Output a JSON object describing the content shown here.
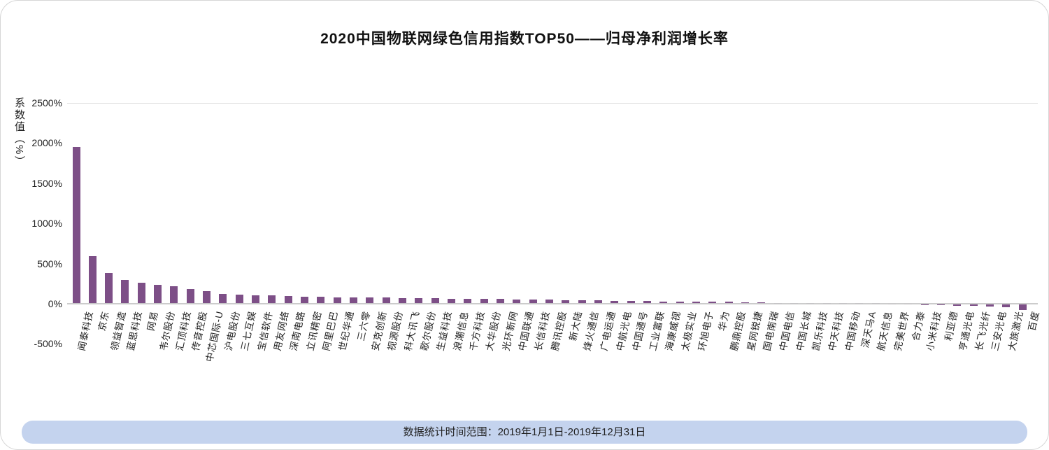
{
  "title": "2020中国物联网绿色信用指数TOP50——归母净利润增长率",
  "y_axis": {
    "title": "系数值（%）"
  },
  "footer": {
    "text": "数据统计时间范围：2019年1月1日-2019年12月31日"
  },
  "colors": {
    "bar": "#7d4f87",
    "footer_bg": "#c4d3ee",
    "axis_line": "#c9c9c9",
    "gridline": "#dcdcdc"
  },
  "chart_data": {
    "type": "bar",
    "title": "2020中国物联网绿色信用指数TOP50——归母净利润增长率",
    "xlabel": "",
    "ylabel": "系数值（%）",
    "ylim": [
      -500,
      2500
    ],
    "yticks": [
      "2500%",
      "2000%",
      "1500%",
      "1000%",
      "500%",
      "0%",
      "-500%"
    ],
    "grid": "top-line-and-zero-axis-only",
    "legend": "none",
    "bar_color": "#7d4f87",
    "categories": [
      "闻泰科技",
      "京东",
      "领益智造",
      "蓝思科技",
      "网易",
      "韦尔股份",
      "汇顶科技",
      "传音控股",
      "中芯国际-U",
      "沪电股份",
      "三七互娱",
      "宝信软件",
      "用友网络",
      "深南电路",
      "立讯精密",
      "阿里巴巴",
      "世纪华通",
      "三六零",
      "安克创新",
      "视源股份",
      "科大讯飞",
      "歌尔股份",
      "生益科技",
      "浪潮信息",
      "千方科技",
      "大华股份",
      "光环新网",
      "中国联通",
      "长信科技",
      "腾讯控股",
      "新大陆",
      "烽火通信",
      "广电运通",
      "中航光电",
      "中国通号",
      "工业富联",
      "海康威视",
      "太极实业",
      "环旭电子",
      "华为",
      "鹏鼎控股",
      "星网锐捷",
      "国电南瑞",
      "中国电信",
      "中国长城",
      "凯乐科技",
      "中天科技",
      "中国移动",
      "深天马A",
      "航天信息",
      "完美世界",
      "合力泰",
      "小米科技",
      "利亚德",
      "亨通光电",
      "长飞光纤",
      "三安光电",
      "大族激光",
      "百度"
    ],
    "values": [
      1950,
      590,
      385,
      300,
      265,
      235,
      220,
      185,
      155,
      120,
      115,
      108,
      105,
      92,
      88,
      85,
      82,
      80,
      77,
      75,
      72,
      70,
      67,
      65,
      62,
      60,
      58,
      55,
      52,
      50,
      46,
      43,
      40,
      38,
      35,
      33,
      30,
      28,
      26,
      24,
      22,
      20,
      16,
      12,
      4,
      3,
      2,
      2,
      1,
      1,
      -8,
      -12,
      -15,
      -18,
      -22,
      -26,
      -32,
      -40,
      -75
    ]
  }
}
